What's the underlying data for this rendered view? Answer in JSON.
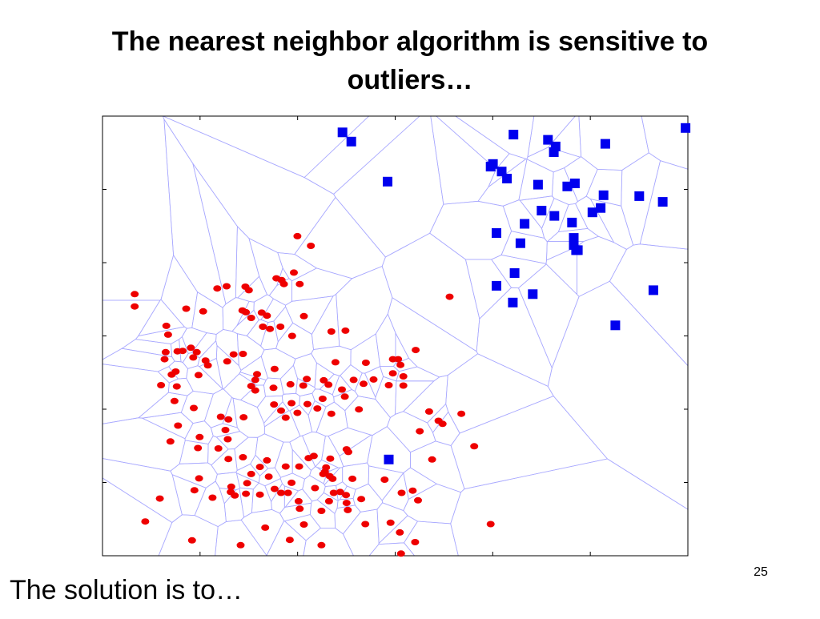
{
  "slide": {
    "title_line1": "The nearest neighbor algorithm is sensitive to",
    "title_line2": "outliers…",
    "footer_text": "The solution is to…",
    "page_number": "25"
  },
  "colors": {
    "class_red": "#ee0000",
    "class_blue": "#0000ee",
    "voronoi_edges": "#aaaaff",
    "axes": "#000000"
  },
  "chart_data": {
    "type": "scatter",
    "title": "",
    "xlabel": "",
    "ylabel": "",
    "grid": false,
    "xlim": [
      0,
      100
    ],
    "ylim": [
      0,
      100
    ],
    "overlay": "voronoi",
    "series": [
      {
        "marker": "square",
        "color": "#0000ee",
        "points": [
          [
            41,
            96.3
          ],
          [
            42.5,
            94.2
          ],
          [
            48.7,
            85.1
          ],
          [
            77.1,
            91.8
          ],
          [
            70.2,
            95.8
          ],
          [
            76.1,
            94.6
          ],
          [
            77.4,
            93.1
          ],
          [
            85.9,
            93.7
          ],
          [
            99.6,
            97.3
          ],
          [
            66.7,
            89.1
          ],
          [
            66.3,
            88.5
          ],
          [
            68.2,
            87.4
          ],
          [
            69.1,
            85.8
          ],
          [
            74.4,
            84.4
          ],
          [
            79.4,
            84
          ],
          [
            80.7,
            84.7
          ],
          [
            85.6,
            82
          ],
          [
            91.7,
            81.8
          ],
          [
            95.7,
            80.5
          ],
          [
            85.1,
            79.1
          ],
          [
            83.7,
            78.1
          ],
          [
            75,
            78.5
          ],
          [
            77.2,
            77.3
          ],
          [
            80.2,
            75.8
          ],
          [
            72.1,
            75.5
          ],
          [
            67.3,
            73.4
          ],
          [
            71.4,
            71.1
          ],
          [
            80.5,
            72.3
          ],
          [
            80.5,
            70.7
          ],
          [
            80.9,
            69.5
          ],
          [
            81.2,
            69.5
          ],
          [
            70.4,
            64.3
          ],
          [
            67.3,
            61.4
          ],
          [
            73.5,
            59.5
          ],
          [
            70.1,
            57.6
          ],
          [
            94.1,
            60.4
          ],
          [
            87.6,
            52.4
          ],
          [
            48.9,
            21.9
          ]
        ]
      },
      {
        "marker": "circle",
        "color": "#ee0000",
        "points": [
          [
            33.3,
            72.7
          ],
          [
            35.6,
            70.5
          ],
          [
            32.7,
            64.4
          ],
          [
            29.7,
            63.1
          ],
          [
            30.6,
            62.7
          ],
          [
            33.7,
            61.8
          ],
          [
            31,
            61.8
          ],
          [
            21.2,
            61.3
          ],
          [
            24.4,
            61.2
          ],
          [
            19.6,
            60.8
          ],
          [
            25,
            60.4
          ],
          [
            5.5,
            59.5
          ],
          [
            59.3,
            58.9
          ],
          [
            5.5,
            56.7
          ],
          [
            14.3,
            56.2
          ],
          [
            23.9,
            55.8
          ],
          [
            17.2,
            55.6
          ],
          [
            24.5,
            55.4
          ],
          [
            27.2,
            55.3
          ],
          [
            28.1,
            54.6
          ],
          [
            34.4,
            54.5
          ],
          [
            25.4,
            54.1
          ],
          [
            27.4,
            52.1
          ],
          [
            30.4,
            52.1
          ],
          [
            10.9,
            52.3
          ],
          [
            28.6,
            51.6
          ],
          [
            41.5,
            51.2
          ],
          [
            39.1,
            51
          ],
          [
            11.2,
            50.3
          ],
          [
            32.4,
            50
          ],
          [
            15.1,
            47.3
          ],
          [
            53.5,
            46.8
          ],
          [
            13.7,
            46.6
          ],
          [
            12.8,
            46.5
          ],
          [
            16.1,
            46.3
          ],
          [
            10.8,
            46.3
          ],
          [
            24,
            45.9
          ],
          [
            22.4,
            45.8
          ],
          [
            15.5,
            45.1
          ],
          [
            10.6,
            44.7
          ],
          [
            49.6,
            44.7
          ],
          [
            50.5,
            44.7
          ],
          [
            17.6,
            44.4
          ],
          [
            21.3,
            44.2
          ],
          [
            39.8,
            44
          ],
          [
            45,
            43.9
          ],
          [
            18,
            43.3
          ],
          [
            50.9,
            43.4
          ],
          [
            29.4,
            42.5
          ],
          [
            12.5,
            41.9
          ],
          [
            11.8,
            41.2
          ],
          [
            16.4,
            41.1
          ],
          [
            26.4,
            41.3
          ],
          [
            49.6,
            41.5
          ],
          [
            51.4,
            40.8
          ],
          [
            34.9,
            40.2
          ],
          [
            37.8,
            39.9
          ],
          [
            46.3,
            40.1
          ],
          [
            42.9,
            40
          ],
          [
            26.1,
            40
          ],
          [
            38.6,
            38.9
          ],
          [
            44.6,
            39.1
          ],
          [
            25.4,
            38.6
          ],
          [
            48.9,
            38.8
          ],
          [
            51.4,
            38.7
          ],
          [
            12.7,
            38.5
          ],
          [
            10,
            38.8
          ],
          [
            32.1,
            39
          ],
          [
            12.3,
            35.2
          ],
          [
            26.1,
            37.6
          ],
          [
            29.2,
            38.2
          ],
          [
            34.3,
            38.7
          ],
          [
            40.9,
            37.8
          ],
          [
            37.6,
            35.7
          ],
          [
            41.4,
            36.2
          ],
          [
            32.3,
            34.7
          ],
          [
            35,
            34.5
          ],
          [
            29.3,
            34.4
          ],
          [
            36.7,
            33.5
          ],
          [
            15.6,
            33.6
          ],
          [
            43.8,
            33.3
          ],
          [
            24.1,
            31.5
          ],
          [
            30.5,
            33
          ],
          [
            39.1,
            32.3
          ],
          [
            55.8,
            32.8
          ],
          [
            21.5,
            31
          ],
          [
            20.2,
            31.6
          ],
          [
            31.3,
            31.4
          ],
          [
            33.3,
            32.5
          ],
          [
            16.6,
            27
          ],
          [
            12.9,
            29.6
          ],
          [
            61.3,
            32.3
          ],
          [
            58.1,
            30
          ],
          [
            57.4,
            30.7
          ],
          [
            21,
            28.6
          ],
          [
            54.2,
            28.3
          ],
          [
            11.6,
            26
          ],
          [
            16.3,
            24.5
          ],
          [
            21.4,
            26.5
          ],
          [
            19.8,
            24.4
          ],
          [
            35.2,
            22.2
          ],
          [
            33.6,
            20.3
          ],
          [
            38.9,
            22.1
          ],
          [
            21.5,
            22
          ],
          [
            24,
            22.4
          ],
          [
            28.1,
            21.7
          ],
          [
            41.7,
            24.2
          ],
          [
            42,
            23.6
          ],
          [
            63.5,
            24.9
          ],
          [
            56.3,
            21.9
          ],
          [
            31.3,
            20.3
          ],
          [
            38.2,
            20.1
          ],
          [
            38,
            19.1
          ],
          [
            36.1,
            22.7
          ],
          [
            26.9,
            20.2
          ],
          [
            25.4,
            18.6
          ],
          [
            38.8,
            18.1
          ],
          [
            37.7,
            18.6
          ],
          [
            39.3,
            17.5
          ],
          [
            42.7,
            17.5
          ],
          [
            16.5,
            17.6
          ],
          [
            24.7,
            16.5
          ],
          [
            39.5,
            14.3
          ],
          [
            30.5,
            14.3
          ],
          [
            26.9,
            13.9
          ],
          [
            36.3,
            15.4
          ],
          [
            40.6,
            14.5
          ],
          [
            41.6,
            13.8
          ],
          [
            48.2,
            17.3
          ],
          [
            51.1,
            14.3
          ],
          [
            33.5,
            12.4
          ],
          [
            15.7,
            14.9
          ],
          [
            21.9,
            14.5
          ],
          [
            29.4,
            15.2
          ],
          [
            41.7,
            12
          ],
          [
            38.7,
            12.4
          ],
          [
            22.6,
            13.7
          ],
          [
            18.8,
            13.2
          ],
          [
            32.3,
            16.6
          ],
          [
            28.4,
            18
          ],
          [
            22,
            15.7
          ],
          [
            24.5,
            14.1
          ],
          [
            31.7,
            14.3
          ],
          [
            53,
            14.8
          ],
          [
            53.9,
            12.6
          ],
          [
            9.8,
            13
          ],
          [
            44.2,
            12.9
          ],
          [
            37.4,
            10.2
          ],
          [
            41.9,
            10.4
          ],
          [
            33.7,
            10.7
          ],
          [
            7.3,
            7.8
          ],
          [
            34.4,
            7.1
          ],
          [
            44.9,
            7.2
          ],
          [
            66.3,
            7.2
          ],
          [
            50.8,
            5.3
          ],
          [
            51,
            0.5
          ],
          [
            23.6,
            2.4
          ],
          [
            15.3,
            3.5
          ],
          [
            37.4,
            2.4
          ],
          [
            49.2,
            7.5
          ],
          [
            53.4,
            3.1
          ],
          [
            32,
            3.6
          ],
          [
            27.8,
            6.4
          ]
        ]
      }
    ]
  }
}
